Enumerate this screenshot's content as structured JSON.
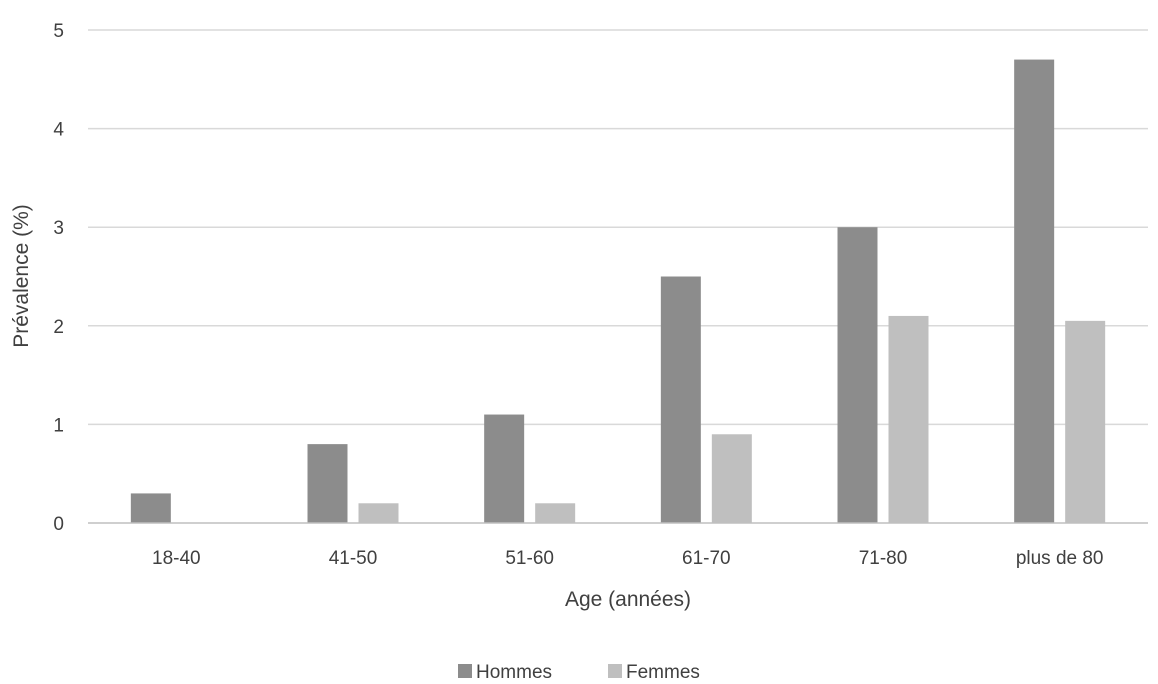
{
  "chart_data": {
    "type": "bar",
    "title": "",
    "xlabel": "Age (années)",
    "ylabel": "Prévalence (%)",
    "categories": [
      "18-40",
      "41-50",
      "51-60",
      "61-70",
      "71-80",
      "plus de 80"
    ],
    "series": [
      {
        "name": "Hommes",
        "color": "#8c8c8c",
        "values": [
          0.3,
          0.8,
          1.1,
          2.5,
          3.0,
          4.7
        ]
      },
      {
        "name": "Femmes",
        "color": "#bfbfbf",
        "values": [
          0.0,
          0.2,
          0.2,
          0.9,
          2.1,
          2.05
        ]
      }
    ],
    "ylim": [
      0,
      5
    ],
    "yticks": [
      "0",
      "1",
      "2",
      "3",
      "4",
      "5"
    ],
    "grid": true,
    "legend_position": "bottom-center",
    "gridline_color": "#d9d9d9",
    "axis_line_color": "#bfbfbf"
  }
}
